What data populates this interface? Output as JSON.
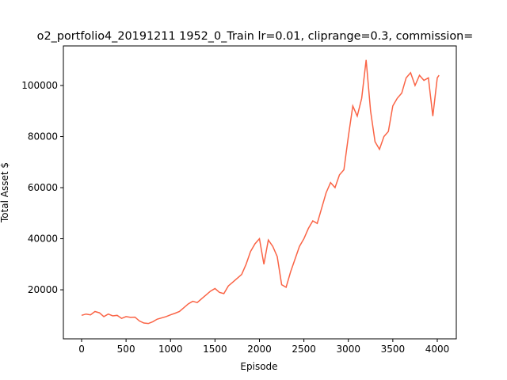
{
  "chart_data": {
    "type": "line",
    "title": "o2_portfolio4_20191211 1952_0_Train lr=0.01, cliprange=0.3, commission=",
    "xlabel": "Episode",
    "ylabel": "Total Asset $",
    "x": [
      0,
      50,
      100,
      150,
      200,
      250,
      300,
      350,
      400,
      450,
      500,
      550,
      600,
      650,
      700,
      750,
      800,
      850,
      900,
      950,
      1000,
      1050,
      1100,
      1150,
      1200,
      1250,
      1300,
      1350,
      1400,
      1450,
      1500,
      1550,
      1600,
      1650,
      1700,
      1750,
      1800,
      1850,
      1900,
      1950,
      2000,
      2050,
      2100,
      2150,
      2200,
      2250,
      2300,
      2350,
      2400,
      2450,
      2500,
      2550,
      2600,
      2650,
      2700,
      2750,
      2800,
      2850,
      2900,
      2950,
      3000,
      3050,
      3100,
      3150,
      3200,
      3250,
      3300,
      3350,
      3400,
      3450,
      3500,
      3550,
      3600,
      3650,
      3700,
      3750,
      3800,
      3850,
      3900,
      3950,
      4000,
      4020
    ],
    "series": [
      {
        "name": "Total Asset",
        "color": "#fa6446",
        "values": [
          10000,
          10500,
          10200,
          11500,
          11000,
          9500,
          10500,
          9800,
          10000,
          8800,
          9500,
          9200,
          9300,
          7800,
          7000,
          6800,
          7500,
          8500,
          9000,
          9500,
          10200,
          10800,
          11500,
          13000,
          14500,
          15500,
          15000,
          16500,
          18000,
          19500,
          20500,
          19000,
          18500,
          21500,
          23000,
          24500,
          26000,
          30000,
          35000,
          38000,
          40000,
          30000,
          39500,
          37000,
          33000,
          22000,
          21000,
          27000,
          32000,
          37000,
          40000,
          44000,
          47000,
          46000,
          52000,
          58000,
          62000,
          60000,
          65000,
          67000,
          80000,
          92000,
          88000,
          95000,
          110000,
          90000,
          78000,
          75000,
          80000,
          82000,
          92000,
          95000,
          97000,
          103000,
          105000,
          100000,
          104000,
          102000,
          103000,
          88000,
          103000,
          104000
        ]
      }
    ],
    "xlim": [
      -205,
      4214
    ],
    "xticks": [
      0,
      500,
      1000,
      1500,
      2000,
      2500,
      3000,
      3500,
      4000
    ],
    "ylim": [
      800,
      115500
    ],
    "yticks": [
      20000,
      40000,
      60000,
      80000,
      100000
    ]
  }
}
